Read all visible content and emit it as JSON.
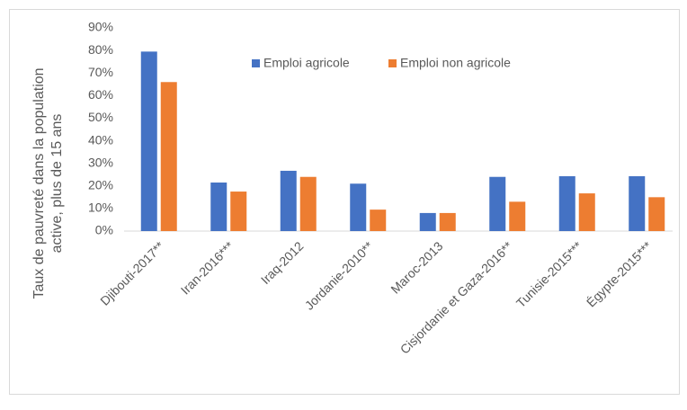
{
  "chart_data": {
    "type": "bar",
    "ylabel": [
      "Taux de pauvreté dans la population",
      "active, plus de 15 ans"
    ],
    "categories": [
      "Djibouti-2017**",
      "Iran-2016***",
      "Iraq-2012",
      "Jordanie-2010**",
      "Maroc-2013",
      "Cisjordanie et Gaza-2016**",
      "Tunisie-2015***",
      "Égypte-2015***"
    ],
    "series": [
      {
        "name": "Emploi agricole",
        "color": "#4472c4",
        "values": [
          79.5,
          21.5,
          26.7,
          21,
          8,
          24,
          24.3,
          24.3
        ]
      },
      {
        "name": "Emploi non agricole",
        "color": "#ed7d31",
        "values": [
          66,
          17.5,
          24,
          9.5,
          8,
          13,
          16.7,
          15
        ]
      }
    ],
    "ylim": [
      0,
      90
    ],
    "yticks": [
      {
        "value": 0,
        "label": "0%"
      },
      {
        "value": 10,
        "label": "10%"
      },
      {
        "value": 20,
        "label": "20%"
      },
      {
        "value": 30,
        "label": "30%"
      },
      {
        "value": 40,
        "label": "40%"
      },
      {
        "value": 50,
        "label": "50%"
      },
      {
        "value": 60,
        "label": "60%"
      },
      {
        "value": 70,
        "label": "70%"
      },
      {
        "value": 80,
        "label": "80%"
      },
      {
        "value": 90,
        "label": "90%"
      }
    ],
    "grid": false,
    "legend": "top"
  }
}
